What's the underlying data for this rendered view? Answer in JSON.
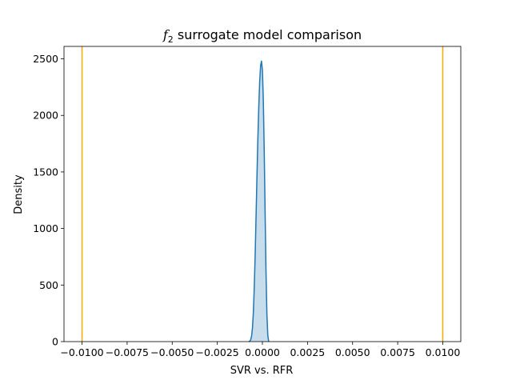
{
  "chart_data": {
    "type": "area",
    "title": {
      "var": "f",
      "sub": "2",
      "rest": " surrogate model comparison"
    },
    "xlabel": "SVR vs. RFR",
    "ylabel": "Density",
    "xlim": [
      -0.011,
      0.011
    ],
    "ylim": [
      0,
      2610
    ],
    "xticks": [
      -0.01,
      -0.0075,
      -0.005,
      -0.0025,
      0.0,
      0.0025,
      0.005,
      0.0075,
      0.01
    ],
    "xtick_labels": [
      "−0.0100",
      "−0.0075",
      "−0.0050",
      "−0.0025",
      "0.0000",
      "0.0025",
      "0.0050",
      "0.0075",
      "0.0100"
    ],
    "yticks": [
      0,
      500,
      1000,
      1500,
      2000,
      2500
    ],
    "ytick_labels": [
      "0",
      "500",
      "1000",
      "1500",
      "2000",
      "2500"
    ],
    "grid": false,
    "series": [
      {
        "kind": "kde",
        "color": "#1f77b4",
        "fill_color": "#1f77b4",
        "fill_opacity": 0.25,
        "x": [
          -0.00075,
          -0.0007,
          -0.00065,
          -0.0006,
          -0.00055,
          -0.0005,
          -0.00045,
          -0.0004,
          -0.00035,
          -0.0003,
          -0.00025,
          -0.0002,
          -0.00015,
          -0.0001,
          -5e-05,
          0.0,
          5e-05,
          0.0001,
          0.00015,
          0.0002,
          0.00025,
          0.0003,
          0.00035
        ],
        "y": [
          0,
          4,
          16,
          48,
          122,
          262,
          484,
          772,
          1118,
          1470,
          1800,
          2080,
          2300,
          2440,
          2480,
          2400,
          2140,
          1700,
          1150,
          620,
          240,
          55,
          0
        ]
      }
    ],
    "vlines": [
      {
        "x": -0.01,
        "color": "#ffa500"
      },
      {
        "x": 0.01,
        "color": "#ffa500"
      }
    ]
  }
}
